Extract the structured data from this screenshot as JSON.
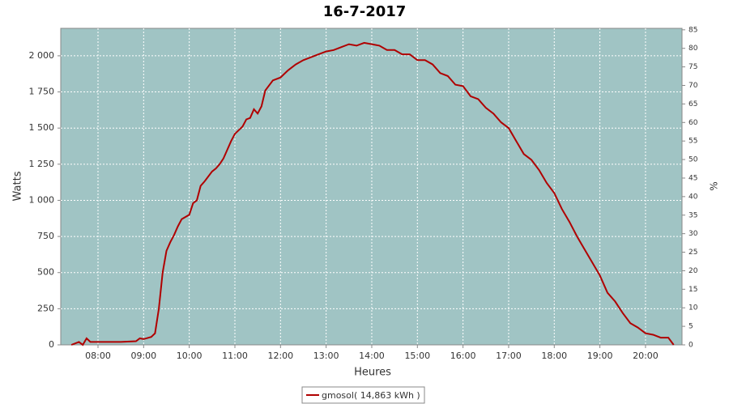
{
  "chart_data": {
    "type": "line",
    "title": "16-7-2017",
    "xlabel": "Heures",
    "ylabel": "Watts",
    "y2label": "%",
    "x": [
      "07:25",
      "07:35",
      "07:40",
      "07:45",
      "07:50",
      "08:00",
      "08:30",
      "08:50",
      "08:55",
      "09:00",
      "09:10",
      "09:15",
      "09:20",
      "09:25",
      "09:30",
      "09:35",
      "09:40",
      "09:45",
      "09:50",
      "10:00",
      "10:05",
      "10:10",
      "10:15",
      "10:20",
      "10:30",
      "10:35",
      "10:40",
      "10:45",
      "10:50",
      "10:55",
      "11:00",
      "11:10",
      "11:15",
      "11:20",
      "11:25",
      "11:30",
      "11:35",
      "11:40",
      "11:50",
      "12:00",
      "12:10",
      "12:20",
      "12:30",
      "12:40",
      "12:50",
      "13:00",
      "13:10",
      "13:20",
      "13:30",
      "13:40",
      "13:50",
      "14:00",
      "14:10",
      "14:20",
      "14:30",
      "14:40",
      "14:50",
      "15:00",
      "15:10",
      "15:20",
      "15:30",
      "15:40",
      "15:50",
      "16:00",
      "16:10",
      "16:20",
      "16:30",
      "16:40",
      "16:50",
      "17:00",
      "17:10",
      "17:20",
      "17:30",
      "17:40",
      "17:50",
      "18:00",
      "18:10",
      "18:20",
      "18:30",
      "18:40",
      "18:50",
      "19:00",
      "19:10",
      "19:20",
      "19:30",
      "19:40",
      "19:50",
      "20:00",
      "20:10",
      "20:20",
      "20:30",
      "20:37"
    ],
    "series": [
      {
        "name": "gmosol( 14,863 kWh )",
        "color": "#b00000",
        "values": [
          0,
          20,
          0,
          45,
          20,
          20,
          20,
          25,
          45,
          40,
          55,
          80,
          250,
          500,
          650,
          710,
          760,
          820,
          870,
          900,
          980,
          1000,
          1100,
          1130,
          1200,
          1220,
          1250,
          1290,
          1350,
          1410,
          1460,
          1510,
          1560,
          1570,
          1630,
          1600,
          1650,
          1760,
          1830,
          1850,
          1900,
          1940,
          1970,
          1990,
          2010,
          2030,
          2040,
          2060,
          2080,
          2070,
          2090,
          2080,
          2070,
          2040,
          2040,
          2010,
          2010,
          1970,
          1970,
          1940,
          1880,
          1860,
          1800,
          1790,
          1720,
          1700,
          1640,
          1600,
          1540,
          1500,
          1410,
          1320,
          1280,
          1210,
          1120,
          1050,
          940,
          850,
          750,
          660,
          570,
          480,
          360,
          300,
          220,
          150,
          120,
          80,
          70,
          50,
          50,
          0
        ]
      }
    ],
    "xlim": [
      "07:11",
      "20:48"
    ],
    "xticks": [
      "08:00",
      "09:00",
      "10:00",
      "11:00",
      "12:00",
      "13:00",
      "14:00",
      "15:00",
      "16:00",
      "17:00",
      "18:00",
      "19:00",
      "20:00"
    ],
    "ylim": [
      0,
      2190
    ],
    "yticks": [
      0,
      250,
      500,
      750,
      {
        "value": 1000,
        "label": "1 000"
      },
      {
        "value": 1250,
        "label": "1 250"
      },
      {
        "value": 1500,
        "label": "1 500"
      },
      {
        "value": 1750,
        "label": "1 750"
      },
      {
        "value": 2000,
        "label": "2 000"
      }
    ],
    "y2lim": [
      0,
      85.4
    ],
    "y2ticks": [
      0,
      5,
      10,
      15,
      20,
      25,
      30,
      35,
      40,
      45,
      50,
      55,
      60,
      65,
      70,
      75,
      80,
      85
    ],
    "grid": true
  }
}
